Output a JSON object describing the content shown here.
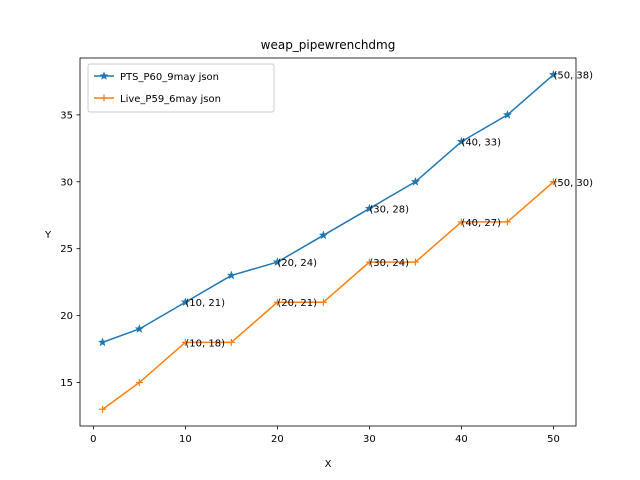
{
  "chart_data": {
    "type": "line",
    "title": "weap_pipewrenchdmg",
    "xlabel": "X",
    "ylabel": "Y",
    "xlim": [
      -1.45,
      52.45
    ],
    "ylim": [
      11.75,
      39.25
    ],
    "xticks": [
      0,
      10,
      20,
      30,
      40,
      50
    ],
    "yticks": [
      15,
      20,
      25,
      30,
      35
    ],
    "grid": false,
    "legend": "upper-left",
    "series": [
      {
        "name": "PTS_P60_9may json",
        "color": "#1f77b4",
        "marker": "star",
        "x": [
          1,
          5,
          10,
          15,
          20,
          25,
          30,
          35,
          40,
          45,
          50
        ],
        "y": [
          18,
          19,
          21,
          23,
          24,
          26,
          28,
          30,
          33,
          35,
          38
        ],
        "annotations": [
          {
            "x": 10,
            "y": 21,
            "text": "(10, 21)"
          },
          {
            "x": 20,
            "y": 24,
            "text": "(20, 24)"
          },
          {
            "x": 30,
            "y": 28,
            "text": "(30, 28)"
          },
          {
            "x": 40,
            "y": 33,
            "text": "(40, 33)"
          },
          {
            "x": 50,
            "y": 38,
            "text": "(50, 38)"
          }
        ]
      },
      {
        "name": "Live_P59_6may json",
        "color": "#ff7f0e",
        "marker": "plus",
        "x": [
          1,
          5,
          10,
          15,
          20,
          25,
          30,
          35,
          40,
          45,
          50
        ],
        "y": [
          13,
          15,
          18,
          18,
          21,
          21,
          24,
          24,
          27,
          27,
          30
        ],
        "annotations": [
          {
            "x": 10,
            "y": 18,
            "text": "(10, 18)"
          },
          {
            "x": 20,
            "y": 21,
            "text": "(20, 21)"
          },
          {
            "x": 30,
            "y": 24,
            "text": "(30, 24)"
          },
          {
            "x": 40,
            "y": 27,
            "text": "(40, 27)"
          },
          {
            "x": 50,
            "y": 30,
            "text": "(50, 30)"
          }
        ]
      }
    ]
  }
}
